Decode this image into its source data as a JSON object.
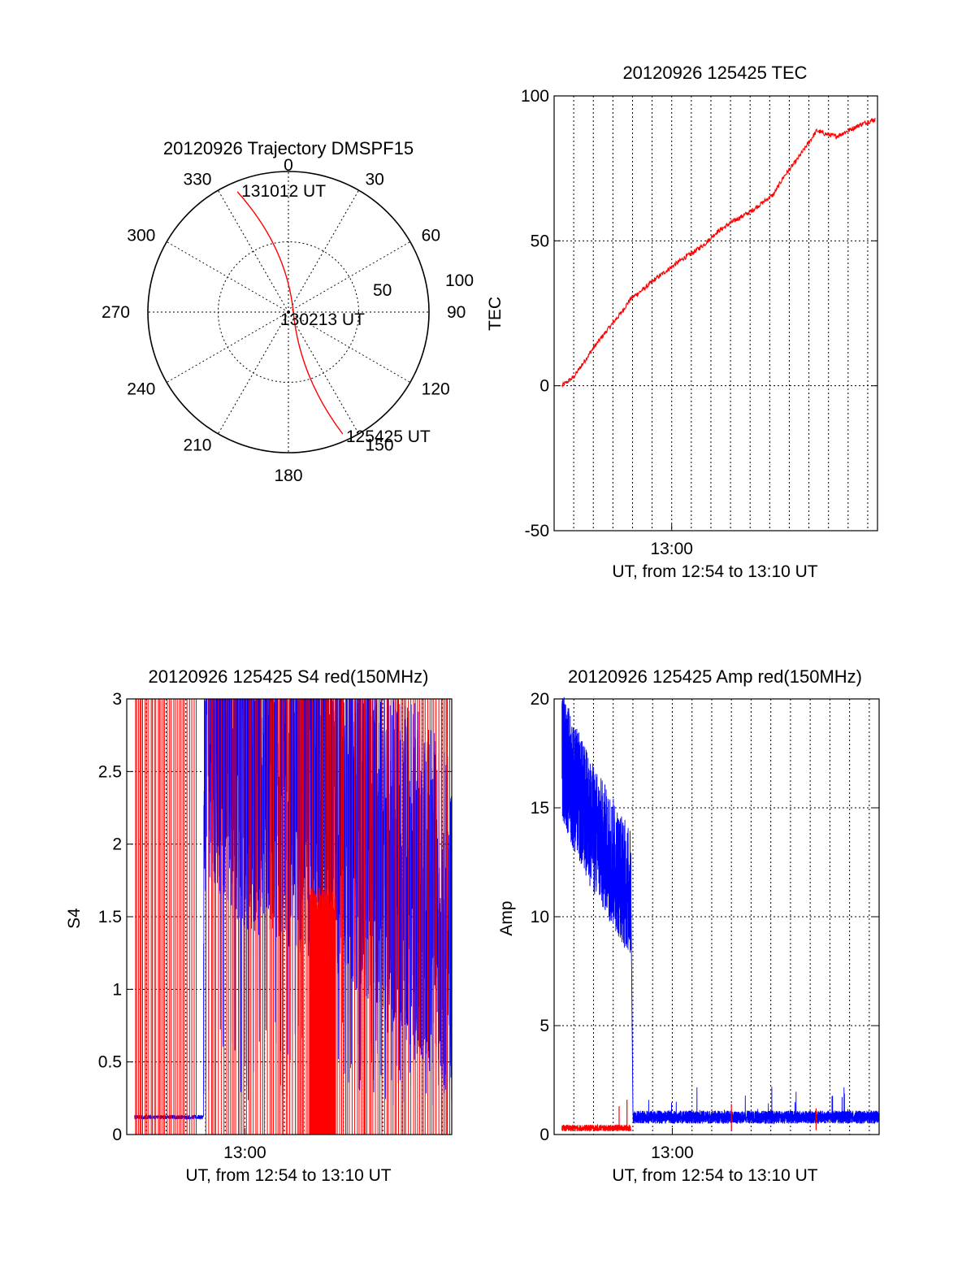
{
  "chart_data": [
    {
      "type": "polar",
      "title": "20120926 Trajectory DMSPF15",
      "angle_labels": [
        "0",
        "30",
        "60",
        "90",
        "120",
        "150",
        "180",
        "210",
        "240",
        "270",
        "300",
        "330"
      ],
      "radius_labels": [
        "50",
        "100"
      ],
      "radial_max": 100,
      "track": {
        "color": "#ff0000",
        "points": [
          {
            "label": "131012 UT",
            "azimuth_deg": 337,
            "radius": 93
          },
          {
            "label": "130213 UT",
            "azimuth_deg": 0,
            "radius": 0
          },
          {
            "label": "125425 UT",
            "azimuth_deg": 156,
            "radius": 95
          }
        ]
      }
    },
    {
      "type": "line",
      "title": "20120926 125425 TEC",
      "ylabel": "TEC",
      "xlabel": "UT, from 12:54 to 13:10 UT",
      "xtick_labels": [
        "13:00"
      ],
      "yticks": [
        "100",
        "50",
        "0",
        "-50"
      ],
      "ylim": [
        -50,
        100
      ],
      "xlim_minutes": [
        54.0,
        70.5
      ],
      "series": [
        {
          "color": "#ff0000",
          "x": [
            54.4,
            55.0,
            55.5,
            56.0,
            56.8,
            57.4,
            57.9,
            58.5,
            59.2,
            60.0,
            60.6,
            61.1,
            61.7,
            62.3,
            63.2,
            64.0,
            64.8,
            65.2,
            65.7,
            66.4,
            67.0,
            67.4,
            67.8,
            68.4,
            69.0,
            69.6,
            70.4
          ],
          "values": [
            0,
            3,
            8,
            13,
            20,
            25,
            30,
            33,
            37,
            41,
            44,
            46,
            49,
            53,
            57,
            60,
            64,
            66,
            72,
            78,
            84,
            88,
            87,
            86,
            88,
            90,
            92
          ]
        }
      ]
    },
    {
      "type": "line",
      "title": "20120926 125425 S4 red(150MHz)",
      "ylabel": "S4",
      "xlabel": "UT, from 12:54 to 13:10 UT",
      "xtick_labels": [
        "13:00"
      ],
      "yticks": [
        "3",
        "2.5",
        "2",
        "1.5",
        "1",
        "0.5",
        "0"
      ],
      "ylim": [
        0,
        3
      ],
      "xlim_minutes": [
        54.0,
        70.5
      ],
      "series": [
        {
          "color": "#0000ff",
          "x": [
            54.4,
            56.0,
            57.8,
            58.0,
            59.0,
            60.0,
            62.0,
            63.5,
            64.5,
            65.5,
            66.5,
            67.5,
            68.5,
            69.5,
            70.5
          ],
          "values": [
            0.11,
            0.12,
            0.13,
            3.0,
            2.8,
            2.6,
            2.5,
            2.4,
            2.3,
            2.2,
            2.1,
            1.9,
            1.8,
            1.6,
            1.4
          ]
        },
        {
          "color": "#ff0000",
          "x": [
            54.4,
            56.0,
            58.0,
            60.0,
            62.0,
            64.0,
            66.0,
            68.0,
            70.0
          ],
          "values": [
            3.0,
            3.0,
            3.0,
            3.0,
            3.0,
            3.0,
            3.0,
            3.0,
            3.0
          ]
        }
      ]
    },
    {
      "type": "line",
      "title": "20120926 125425 Amp red(150MHz)",
      "ylabel": "Amp",
      "xlabel": "UT, from 12:54 to 13:10 UT",
      "xtick_labels": [
        "13:00"
      ],
      "yticks": [
        "20",
        "15",
        "10",
        "5",
        "0"
      ],
      "ylim": [
        0,
        20
      ],
      "xlim_minutes": [
        54.0,
        70.5
      ],
      "series": [
        {
          "color": "#0000ff",
          "x": [
            54.4,
            55.0,
            56.0,
            57.0,
            57.9,
            58.0,
            60.0,
            62.0,
            64.0,
            66.0,
            68.0,
            70.5
          ],
          "values": [
            17.5,
            16.0,
            14.0,
            12.5,
            11.0,
            0.4,
            0.45,
            0.5,
            0.5,
            0.5,
            0.55,
            0.6
          ]
        },
        {
          "color": "#ff0000",
          "x": [
            54.4,
            56.0,
            57.9
          ],
          "values": [
            0.25,
            0.3,
            0.3
          ]
        }
      ]
    }
  ]
}
